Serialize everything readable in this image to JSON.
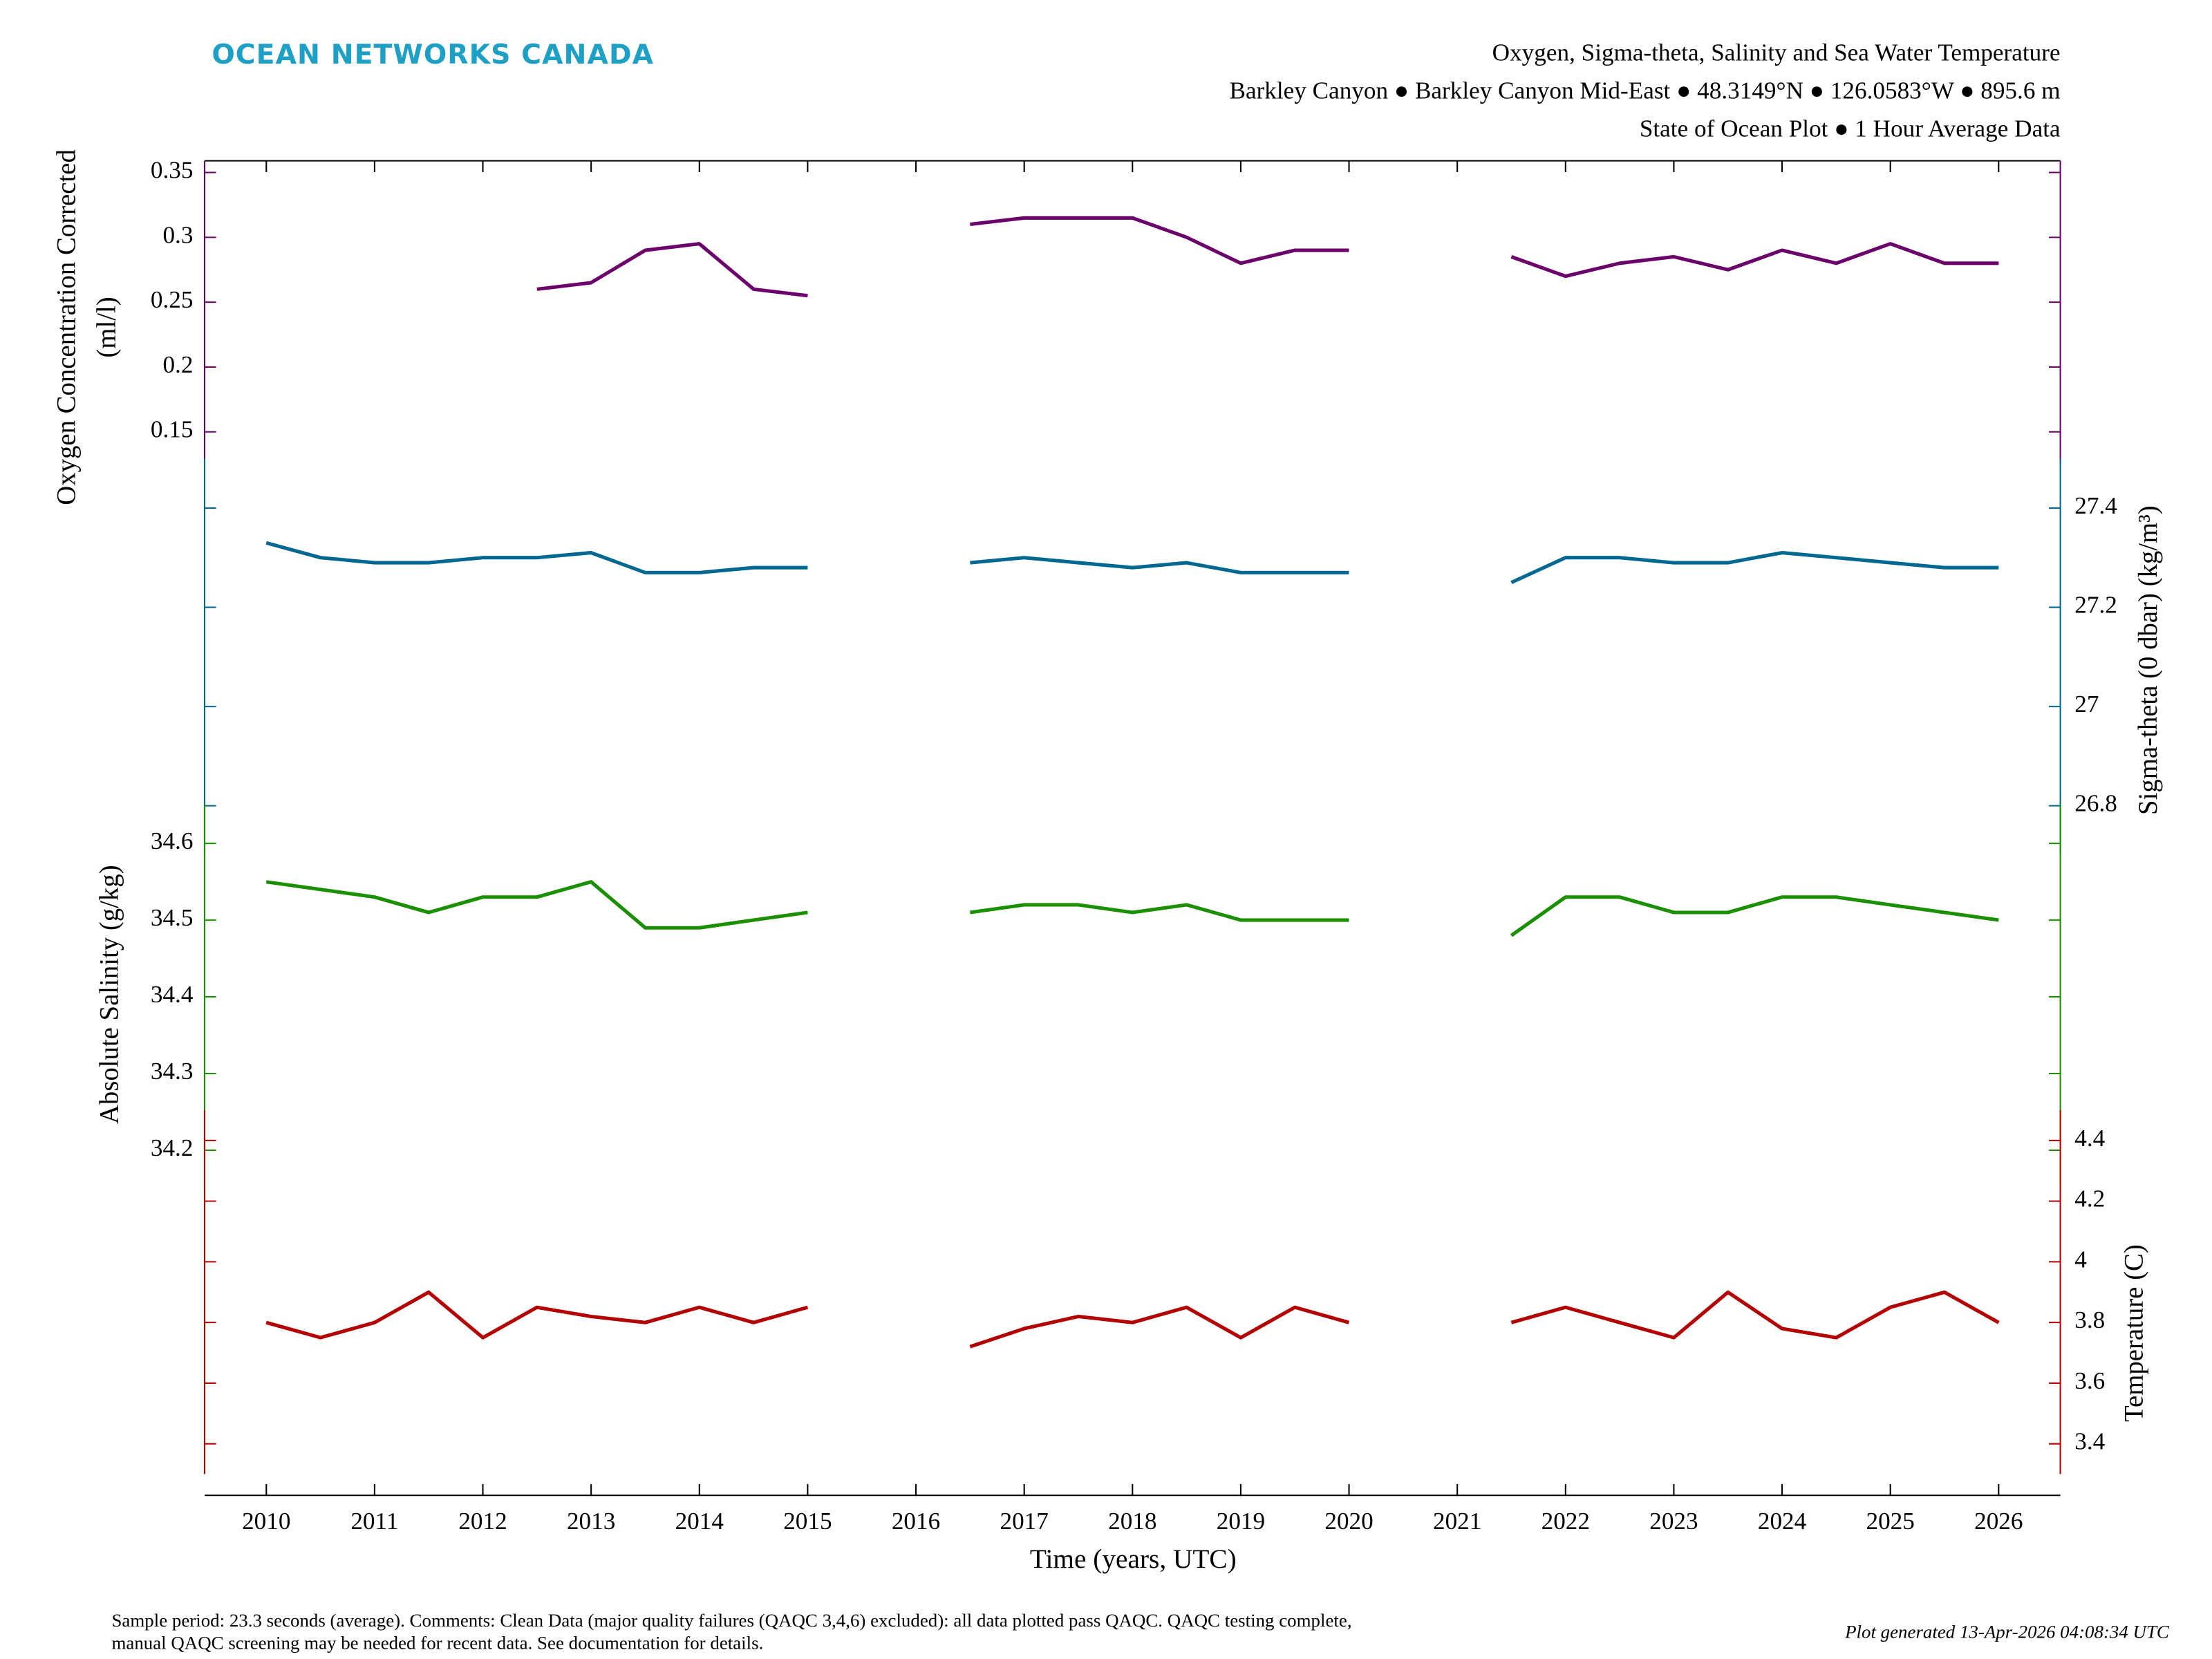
{
  "header": {
    "logo": "OCEAN NETWORKS CANADA"
  },
  "chart_data": {
    "type": "line",
    "title": [
      "Oxygen, Sigma-theta, Salinity and Sea Water Temperature",
      "Barkley Canyon ● Barkley Canyon Mid-East ● 48.3149°N ● 126.0583°W ● 895.6 m",
      "State of Ocean Plot ● 1 Hour Average Data"
    ],
    "xlabel": "Time (years, UTC)",
    "xlim": [
      2009.43,
      2026.57
    ],
    "xticks": [
      2010,
      2011,
      2012,
      2013,
      2014,
      2015,
      2016,
      2017,
      2018,
      2019,
      2020,
      2021,
      2022,
      2023,
      2024,
      2025,
      2026
    ],
    "x": [
      2010,
      2010.5,
      2011,
      2011.5,
      2012,
      2012.5,
      2013,
      2013.5,
      2014,
      2014.5,
      2015,
      2015.5,
      2016,
      2016.5,
      2017,
      2017.5,
      2018,
      2018.5,
      2019,
      2019.5,
      2020,
      2020.5,
      2021,
      2021.5,
      2022,
      2022.5,
      2023,
      2023.5,
      2024,
      2024.5,
      2025,
      2025.5,
      2026
    ],
    "panels": [
      {
        "label": [
          "Oxygen Concentration Corrected",
          "(ml/l)"
        ],
        "side": "left",
        "color": "#6b006b",
        "ylim": [
          -0.67,
          0.359
        ],
        "yticks": [
          0.15,
          0.2,
          0.25,
          0.3,
          0.35
        ],
        "values": [
          null,
          null,
          null,
          null,
          null,
          0.26,
          0.265,
          0.29,
          0.295,
          0.26,
          0.255,
          null,
          null,
          0.31,
          0.315,
          0.315,
          0.315,
          0.3,
          0.28,
          0.29,
          0.29,
          null,
          null,
          0.285,
          0.27,
          0.28,
          0.285,
          0.275,
          0.29,
          0.28,
          0.295,
          0.28,
          0.28
        ]
      },
      {
        "label": [
          "Sigma-theta (0 dbar) (kg/m³)"
        ],
        "side": "right",
        "color": "#006890",
        "ylim": [
          25.41,
          28.1
        ],
        "yticks": [
          26.8,
          27,
          27.2,
          27.4
        ],
        "values": [
          27.33,
          27.3,
          27.29,
          27.29,
          27.3,
          27.3,
          27.31,
          27.27,
          27.27,
          27.28,
          27.28,
          null,
          null,
          27.29,
          27.3,
          27.29,
          27.28,
          27.29,
          27.27,
          27.27,
          27.27,
          null,
          null,
          27.25,
          27.3,
          27.3,
          27.29,
          27.29,
          27.31,
          27.3,
          27.29,
          27.28,
          27.28
        ]
      },
      {
        "label": [
          "Absolute Salinity (g/kg)"
        ],
        "side": "left",
        "color": "#1a8f00",
        "ylim": [
          33.75,
          35.49
        ],
        "yticks": [
          34.2,
          34.3,
          34.4,
          34.5,
          34.6
        ],
        "values": [
          34.55,
          34.54,
          34.53,
          34.51,
          34.53,
          34.53,
          34.55,
          34.49,
          34.49,
          34.5,
          34.51,
          null,
          null,
          34.51,
          34.52,
          34.52,
          34.51,
          34.52,
          34.5,
          34.5,
          34.5,
          null,
          null,
          34.48,
          34.53,
          34.53,
          34.51,
          34.51,
          34.53,
          34.53,
          34.52,
          34.51,
          34.5
        ]
      },
      {
        "label": [
          "Temperature (C)"
        ],
        "side": "right",
        "color": "#b30000",
        "ylim": [
          3.23,
          7.63
        ],
        "yticks": [
          3.4,
          3.6,
          3.8,
          4,
          4.2,
          4.4
        ],
        "values": [
          3.8,
          3.75,
          3.8,
          3.9,
          3.75,
          3.85,
          3.82,
          3.8,
          3.85,
          3.8,
          3.85,
          null,
          null,
          3.72,
          3.78,
          3.82,
          3.8,
          3.85,
          3.75,
          3.85,
          3.8,
          null,
          null,
          3.8,
          3.85,
          3.8,
          3.75,
          3.9,
          3.78,
          3.75,
          3.85,
          3.9,
          3.8
        ]
      }
    ]
  },
  "footer": {
    "comments": [
      "Sample period: 23.3 seconds (average). Comments: Clean Data (major quality failures (QAQC 3,4,6) excluded): all data plotted pass QAQC. QAQC testing complete,",
      "manual QAQC screening may be needed for recent data. See documentation for details."
    ],
    "generated": "Plot generated 13-Apr-2026 04:08:34 UTC"
  }
}
